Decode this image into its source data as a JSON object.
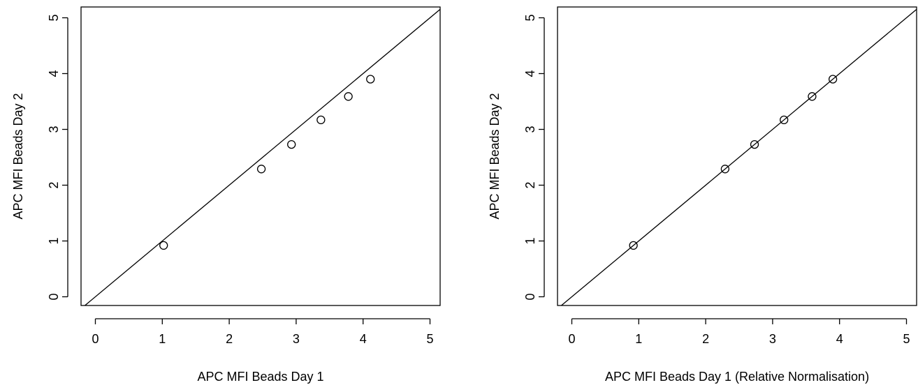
{
  "chart_data": [
    {
      "type": "scatter",
      "xlabel": "APC MFI Beads Day 1",
      "ylabel": "APC MFI Beads Day 2",
      "xlim": [
        0,
        5
      ],
      "ylim": [
        0,
        5
      ],
      "x_ticks": [
        "0",
        "1",
        "2",
        "3",
        "4",
        "5"
      ],
      "y_ticks": [
        "0",
        "1",
        "2",
        "3",
        "4",
        "5"
      ],
      "grid": false,
      "reference_line": "y = x",
      "points": [
        {
          "x": 1.02,
          "y": 0.92
        },
        {
          "x": 2.48,
          "y": 2.29
        },
        {
          "x": 2.93,
          "y": 2.73
        },
        {
          "x": 3.37,
          "y": 3.17
        },
        {
          "x": 3.78,
          "y": 3.59
        },
        {
          "x": 4.11,
          "y": 3.9
        }
      ]
    },
    {
      "type": "scatter",
      "xlabel": "APC MFI Beads Day 1 (Relative Normalisation)",
      "ylabel": "APC MFI Beads Day 2",
      "xlim": [
        0,
        5
      ],
      "ylim": [
        0,
        5
      ],
      "x_ticks": [
        "0",
        "1",
        "2",
        "3",
        "4",
        "5"
      ],
      "y_ticks": [
        "0",
        "1",
        "2",
        "3",
        "4",
        "5"
      ],
      "grid": false,
      "reference_line": "y = x",
      "points": [
        {
          "x": 0.92,
          "y": 0.92
        },
        {
          "x": 2.29,
          "y": 2.29
        },
        {
          "x": 2.73,
          "y": 2.73
        },
        {
          "x": 3.17,
          "y": 3.17
        },
        {
          "x": 3.59,
          "y": 3.59
        },
        {
          "x": 3.9,
          "y": 3.9
        }
      ]
    }
  ]
}
